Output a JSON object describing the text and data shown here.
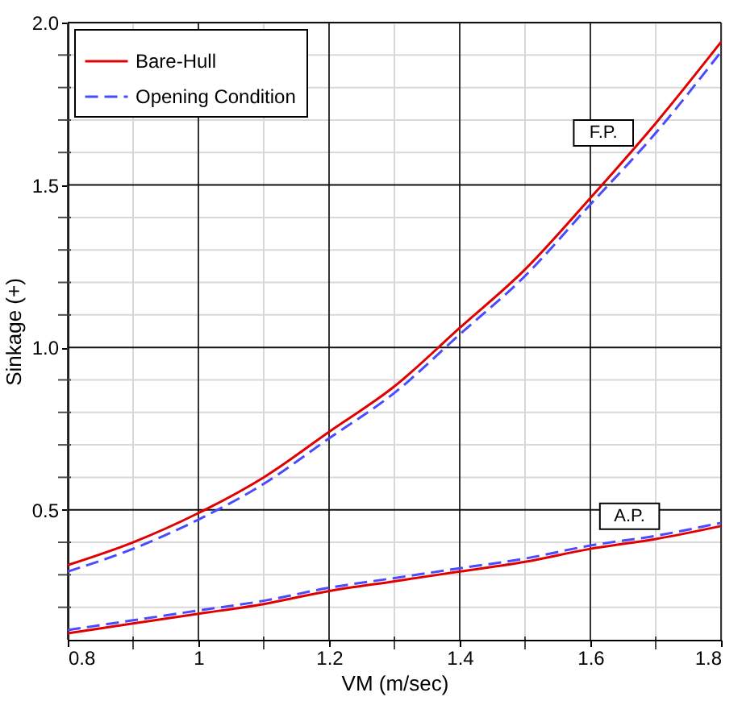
{
  "chart_data": {
    "type": "line",
    "xlabel": "VM (m/sec)",
    "ylabel": "Sinkage (+)",
    "xlim": [
      0.8,
      1.8
    ],
    "ylim": [
      0.1,
      2.0
    ],
    "xticks": [
      0.8,
      {
        "value": 0.9,
        "label": null
      },
      1,
      {
        "value": 1.1,
        "label": null
      },
      1.2,
      {
        "value": 1.3,
        "label": null
      },
      1.4,
      {
        "value": 1.5,
        "label": null
      },
      1.6,
      {
        "value": 1.7,
        "label": null
      },
      1.8
    ],
    "yticks": [
      {
        "value": 0.2,
        "label": null
      },
      {
        "value": 0.3,
        "label": null
      },
      {
        "value": 0.4,
        "label": null
      },
      0.5,
      {
        "value": 0.6,
        "label": null
      },
      {
        "value": 0.7,
        "label": null
      },
      {
        "value": 0.8,
        "label": null
      },
      {
        "value": 0.9,
        "label": null
      },
      {
        "value": 1,
        "label": "1.0"
      },
      {
        "value": 1.1,
        "label": null
      },
      {
        "value": 1.2,
        "label": null
      },
      {
        "value": 1.3,
        "label": null
      },
      {
        "value": 1.4,
        "label": null
      },
      1.5,
      {
        "value": 1.6,
        "label": null
      },
      {
        "value": 1.7,
        "label": null
      },
      {
        "value": 1.8,
        "label": null
      },
      {
        "value": 1.9,
        "label": null
      },
      {
        "value": 2,
        "label": "2.0"
      }
    ],
    "x": [
      0.8,
      0.9,
      1.0,
      1.1,
      1.2,
      1.3,
      1.4,
      1.5,
      1.6,
      1.7,
      1.8
    ],
    "series": [
      {
        "name": "Bare-Hull",
        "color": "#e00000",
        "line_style": "solid",
        "values": [
          0.33,
          0.4,
          0.49,
          0.6,
          0.74,
          0.88,
          1.06,
          1.24,
          1.46,
          1.69,
          1.94
        ]
      },
      {
        "name": "Opening Condition",
        "color": "#4a4aff",
        "line_style": "dashed",
        "values": [
          0.31,
          0.38,
          0.47,
          0.58,
          0.72,
          0.86,
          1.04,
          1.22,
          1.44,
          1.66,
          1.91
        ]
      },
      {
        "color": "#e00000",
        "line_style": "solid",
        "values": [
          0.12,
          0.15,
          0.18,
          0.21,
          0.25,
          0.28,
          0.31,
          0.34,
          0.38,
          0.41,
          0.45
        ]
      },
      {
        "color": "#4a4aff",
        "line_style": "dashed",
        "values": [
          0.13,
          0.16,
          0.19,
          0.22,
          0.26,
          0.29,
          0.32,
          0.35,
          0.39,
          0.42,
          0.46
        ]
      }
    ],
    "annotations": [
      {
        "text": "F.P.",
        "x": 1.62,
        "y": 1.66
      },
      {
        "text": "A.P.",
        "x": 1.66,
        "y": 0.48
      }
    ],
    "grid": true,
    "legend": "top left",
    "marker": "none"
  }
}
